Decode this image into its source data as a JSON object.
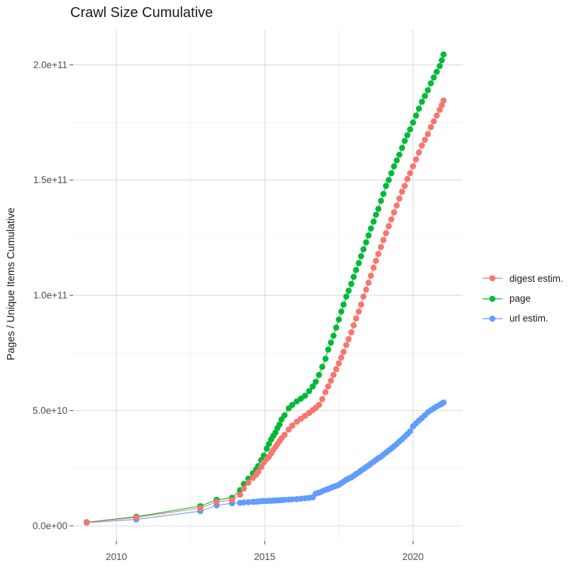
{
  "chart_data": {
    "type": "scatter",
    "title": "Crawl Size Cumulative",
    "ylabel": "Pages / Unique Items Cumulative",
    "xlabel": "",
    "legend_position": "right-middle",
    "grid": "major+minor",
    "background": "#FFFFFF",
    "axis_text_color": "#4D4D4D",
    "x_axis": {
      "range": [
        2008.54,
        2021.67
      ],
      "ticks": [
        {
          "value": 2010,
          "label": "2010"
        },
        {
          "value": 2015,
          "label": "2015"
        },
        {
          "value": 2020,
          "label": "2020"
        }
      ],
      "minor_ticks": [
        2012.5,
        2017.5
      ]
    },
    "y_axis": {
      "unit": "pages (values stored as multiples of 1e10)",
      "range": [
        -0.65,
        21.52
      ],
      "ticks": [
        {
          "value": 0,
          "label": "0.0e+00"
        },
        {
          "value": 5,
          "label": "5.0e+10"
        },
        {
          "value": 10,
          "label": "1.0e+11"
        },
        {
          "value": 15,
          "label": "1.5e+11"
        },
        {
          "value": 20,
          "label": "2.0e+11"
        }
      ],
      "minor_ticks": [
        2.5,
        7.5,
        12.5,
        17.5
      ]
    },
    "x_years": [
      2009.0,
      2010.67,
      2012.83,
      2013.38,
      2013.9,
      2014.17,
      2014.3,
      2014.45,
      2014.6,
      2014.71,
      2014.78,
      2014.88,
      2014.97,
      2015.07,
      2015.14,
      2015.22,
      2015.29,
      2015.36,
      2015.43,
      2015.5,
      2015.57,
      2015.67,
      2015.81,
      2015.93,
      2016.08,
      2016.22,
      2016.36,
      2016.5,
      2016.62,
      2016.72,
      2016.83,
      2016.94,
      2017.05,
      2017.14,
      2017.23,
      2017.32,
      2017.41,
      2017.5,
      2017.58,
      2017.66,
      2017.75,
      2017.83,
      2017.92,
      2018.0,
      2018.08,
      2018.17,
      2018.25,
      2018.33,
      2018.42,
      2018.5,
      2018.58,
      2018.67,
      2018.75,
      2018.83,
      2018.92,
      2019.0,
      2019.09,
      2019.18,
      2019.27,
      2019.36,
      2019.45,
      2019.54,
      2019.63,
      2019.72,
      2019.81,
      2019.9,
      2020.0,
      2020.1,
      2020.2,
      2020.3,
      2020.4,
      2020.5,
      2020.6,
      2020.7,
      2020.8,
      2020.9,
      2020.97,
      2021.03
    ],
    "series": [
      {
        "name": "digest estim.",
        "color": "#F8766D",
        "values": [
          0.15,
          0.37,
          0.77,
          1.04,
          1.13,
          1.35,
          1.62,
          1.88,
          2.08,
          2.22,
          2.35,
          2.55,
          2.75,
          2.9,
          3.0,
          3.15,
          3.3,
          3.42,
          3.55,
          3.68,
          3.8,
          3.95,
          4.18,
          4.35,
          4.52,
          4.65,
          4.78,
          4.9,
          5.02,
          5.12,
          5.25,
          5.5,
          5.8,
          6.05,
          6.3,
          6.55,
          6.8,
          7.05,
          7.3,
          7.55,
          7.85,
          8.1,
          8.4,
          8.7,
          9.0,
          9.3,
          9.6,
          9.95,
          10.25,
          10.55,
          10.85,
          11.2,
          11.5,
          11.8,
          12.1,
          12.4,
          12.7,
          13.0,
          13.3,
          13.6,
          13.9,
          14.2,
          14.5,
          14.75,
          15.05,
          15.3,
          15.6,
          15.9,
          16.2,
          16.5,
          16.75,
          17.0,
          17.3,
          17.55,
          17.8,
          18.05,
          18.25,
          18.45
        ]
      },
      {
        "name": "page",
        "color": "#00BA38",
        "values": [
          0.16,
          0.4,
          0.86,
          1.13,
          1.22,
          1.55,
          1.82,
          2.05,
          2.28,
          2.45,
          2.6,
          2.85,
          3.05,
          3.35,
          3.55,
          3.75,
          3.9,
          4.05,
          4.25,
          4.4,
          4.62,
          4.8,
          5.1,
          5.25,
          5.4,
          5.52,
          5.65,
          5.85,
          6.05,
          6.25,
          6.55,
          6.9,
          7.25,
          7.65,
          7.95,
          8.25,
          8.6,
          8.95,
          9.3,
          9.6,
          9.95,
          10.2,
          10.5,
          10.8,
          11.1,
          11.4,
          11.7,
          12.0,
          12.3,
          12.6,
          12.9,
          13.2,
          13.5,
          13.75,
          14.1,
          14.4,
          14.75,
          15.0,
          15.3,
          15.6,
          15.85,
          16.1,
          16.4,
          16.7,
          16.95,
          17.2,
          17.5,
          17.8,
          18.1,
          18.4,
          18.65,
          18.9,
          19.2,
          19.45,
          19.7,
          19.95,
          20.2,
          20.45
        ]
      },
      {
        "name": "url estim.",
        "color": "#619CFF",
        "values": [
          0.14,
          0.28,
          0.64,
          0.89,
          0.98,
          1.0,
          1.02,
          1.03,
          1.04,
          1.05,
          1.06,
          1.07,
          1.08,
          1.08,
          1.09,
          1.09,
          1.1,
          1.1,
          1.11,
          1.11,
          1.12,
          1.13,
          1.14,
          1.15,
          1.16,
          1.18,
          1.2,
          1.22,
          1.24,
          1.4,
          1.44,
          1.5,
          1.56,
          1.6,
          1.65,
          1.7,
          1.74,
          1.78,
          1.85,
          1.92,
          2.0,
          2.05,
          2.1,
          2.17,
          2.25,
          2.32,
          2.4,
          2.47,
          2.55,
          2.62,
          2.7,
          2.78,
          2.86,
          2.94,
          3.0,
          3.09,
          3.18,
          3.27,
          3.36,
          3.45,
          3.55,
          3.66,
          3.76,
          3.87,
          3.98,
          4.1,
          4.32,
          4.45,
          4.57,
          4.68,
          4.8,
          4.93,
          5.02,
          5.1,
          5.18,
          5.25,
          5.3,
          5.35
        ]
      }
    ]
  }
}
